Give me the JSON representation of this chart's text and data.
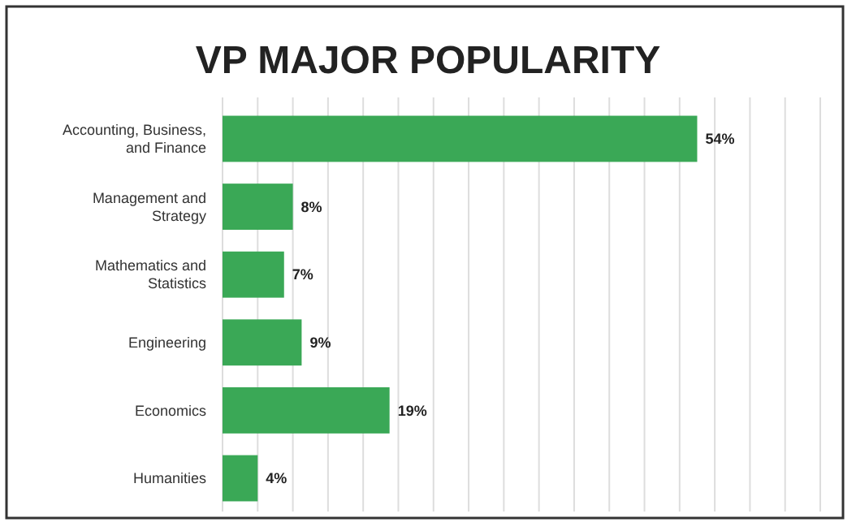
{
  "chart_data": {
    "type": "bar",
    "orientation": "horizontal",
    "title": "VP MAJOR POPULARITY",
    "categories": [
      "Accounting, Business, and Finance",
      "Management and Strategy",
      "Mathematics and Statistics",
      "Engineering",
      "Economics",
      "Humanities"
    ],
    "values": [
      54,
      8,
      7,
      9,
      19,
      4
    ],
    "value_labels": [
      "54%",
      "8%",
      "7%",
      "9%",
      "19%",
      "4%"
    ],
    "color": "#3aa856",
    "xlim": [
      0,
      68
    ],
    "xticks": [
      {
        "value": 0,
        "label": null
      },
      {
        "value": 4,
        "label": null
      },
      {
        "value": 8,
        "label": null
      },
      {
        "value": 12,
        "label": null
      },
      {
        "value": 16,
        "label": null
      },
      {
        "value": 20,
        "label": null
      },
      {
        "value": 24,
        "label": null
      },
      {
        "value": 28,
        "label": null
      },
      {
        "value": 32,
        "label": null
      },
      {
        "value": 36,
        "label": null
      },
      {
        "value": 40,
        "label": null
      },
      {
        "value": 44,
        "label": null
      },
      {
        "value": 48,
        "label": null
      },
      {
        "value": 52,
        "label": null
      },
      {
        "value": 56,
        "label": null
      },
      {
        "value": 60,
        "label": null
      },
      {
        "value": 64,
        "label": null
      },
      {
        "value": 68,
        "label": null
      }
    ],
    "grid": "x",
    "tick_labels": "y"
  }
}
